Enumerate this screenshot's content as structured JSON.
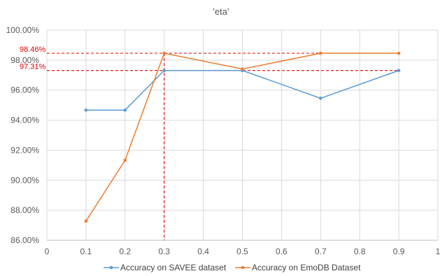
{
  "chart_data": {
    "type": "line",
    "title": "'eta'",
    "xlabel": "",
    "ylabel": "",
    "xlim": [
      0,
      1
    ],
    "ylim": [
      86,
      100
    ],
    "x_ticks": [
      "0",
      "0.1",
      "0.2",
      "0.3",
      "0.4",
      "0.5",
      "0.6",
      "0.7",
      "0.8",
      "0.9",
      "1"
    ],
    "y_ticks": [
      "86.00%",
      "88.00%",
      "90.00%",
      "92.00%",
      "94.00%",
      "96.00%",
      "98.00%",
      "100.00%"
    ],
    "grid": true,
    "legend_position": "bottom",
    "series": [
      {
        "name": "Accuracy on SAVEE dataset",
        "color": "#5b9bd5",
        "x": [
          0.1,
          0.2,
          0.3,
          0.5,
          0.7,
          0.9
        ],
        "values": [
          94.67,
          94.67,
          97.31,
          97.31,
          95.46,
          97.31
        ]
      },
      {
        "name": "Accuracy on EmoDB Dataset",
        "color": "#ed7d31",
        "x": [
          0.1,
          0.2,
          0.3,
          0.5,
          0.7,
          0.9
        ],
        "values": [
          87.28,
          91.33,
          98.46,
          97.41,
          98.46,
          98.46
        ]
      }
    ],
    "annotations": [
      {
        "label": "98.46%",
        "y": 98.46,
        "color": "#e00000"
      },
      {
        "label": "97.31%",
        "y": 97.31,
        "color": "#e00000"
      }
    ],
    "reference_vline": {
      "x": 0.3,
      "color": "#e00000"
    }
  }
}
